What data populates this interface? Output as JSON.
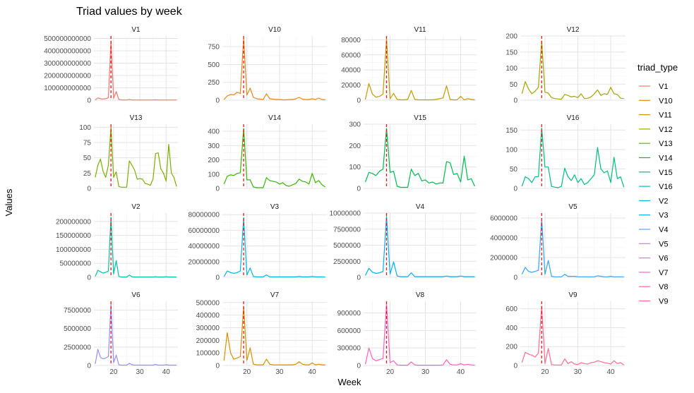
{
  "chart_data": {
    "type": "line",
    "title": "Triad values by week",
    "xlabel": "Week",
    "ylabel": "Values",
    "xlim": [
      12.5,
      44.5
    ],
    "xticks": [
      20,
      30,
      40
    ],
    "vline": {
      "x": 19,
      "color": "#E41A1C",
      "style": "dashed"
    },
    "facet_scales": "free_y",
    "grid": true,
    "legend": {
      "title": "triad_type",
      "position": "right"
    },
    "weeks": [
      13,
      14,
      15,
      16,
      17,
      18,
      19,
      20,
      21,
      22,
      23,
      24,
      25,
      26,
      27,
      28,
      29,
      30,
      31,
      32,
      33,
      34,
      35,
      36,
      37,
      38,
      39,
      40,
      41,
      42,
      43,
      44
    ],
    "panels": [
      {
        "name": "V1",
        "color": "#F8766D",
        "ylim": [
          0,
          520000000000
        ],
        "yticks": [
          0,
          100000000000,
          200000000000,
          300000000000,
          400000000000,
          500000000000
        ],
        "ytick_labels": [
          "0",
          "100000000000",
          "200000000000",
          "300000000000",
          "400000000000",
          "500000000000"
        ],
        "values": [
          3000000000,
          18000000000,
          12000000000,
          10000000000,
          12000000000,
          20000000000,
          480000000000,
          15000000000,
          70000000000,
          5000000000,
          3000000000,
          2000000000,
          2000000000,
          6000000000,
          2000000000,
          2000000000,
          2000000000,
          2000000000,
          2000000000,
          2000000000,
          2000000000,
          2000000000,
          2000000000,
          3000000000,
          2000000000,
          2000000000,
          2000000000,
          2000000000,
          2000000000,
          2000000000,
          2000000000,
          2000000000
        ]
      },
      {
        "name": "V10",
        "color": "#E7861B",
        "ylim": [
          0,
          900
        ],
        "yticks": [
          0,
          250,
          500,
          750
        ],
        "ytick_labels": [
          "0",
          "250",
          "500",
          "750"
        ],
        "values": [
          10,
          60,
          80,
          75,
          110,
          95,
          870,
          70,
          170,
          40,
          20,
          15,
          10,
          90,
          20,
          15,
          10,
          10,
          5,
          5,
          10,
          10,
          20,
          40,
          15,
          10,
          10,
          20,
          10,
          30,
          10,
          5
        ]
      },
      {
        "name": "V11",
        "color": "#C49A00",
        "ylim": [
          0,
          85000
        ],
        "yticks": [
          0,
          20000,
          40000,
          60000,
          80000
        ],
        "ytick_labels": [
          "0",
          "20000",
          "40000",
          "60000",
          "80000"
        ],
        "values": [
          1000,
          22000,
          8000,
          4000,
          5000,
          8000,
          81000,
          2000,
          9000,
          1000,
          500,
          500,
          1000,
          13000,
          1000,
          500,
          500,
          500,
          500,
          500,
          1000,
          2000,
          3000,
          19000,
          1000,
          500,
          500,
          5000,
          500,
          2000,
          1000,
          500
        ]
      },
      {
        "name": "V12",
        "color": "#A3A500",
        "ylim": [
          0,
          200
        ],
        "yticks": [
          0,
          50,
          100,
          150,
          200
        ],
        "ytick_labels": [
          "0",
          "50",
          "100",
          "150",
          "200"
        ],
        "values": [
          20,
          58,
          35,
          20,
          28,
          40,
          185,
          25,
          22,
          8,
          5,
          4,
          3,
          18,
          15,
          10,
          12,
          8,
          20,
          5,
          6,
          10,
          20,
          32,
          15,
          20,
          18,
          40,
          20,
          18,
          6,
          5
        ]
      },
      {
        "name": "V13",
        "color": "#7CAE00",
        "ylim": [
          0,
          105
        ],
        "yticks": [
          0,
          25,
          50,
          75,
          100
        ],
        "ytick_labels": [
          "0",
          "25",
          "50",
          "75",
          "100"
        ],
        "values": [
          18,
          38,
          48,
          28,
          18,
          38,
          100,
          18,
          27,
          3,
          2,
          2,
          2,
          45,
          38,
          30,
          15,
          16,
          15,
          8,
          7,
          5,
          15,
          57,
          58,
          32,
          25,
          12,
          72,
          25,
          18,
          3
        ]
      },
      {
        "name": "V14",
        "color": "#39B600",
        "ylim": [
          0,
          450
        ],
        "yticks": [
          0,
          100,
          200,
          300,
          400
        ],
        "ytick_labels": [
          "0",
          "100",
          "200",
          "300",
          "400"
        ],
        "values": [
          30,
          85,
          95,
          90,
          105,
          110,
          420,
          60,
          60,
          10,
          5,
          5,
          5,
          75,
          55,
          50,
          45,
          30,
          40,
          20,
          15,
          25,
          35,
          65,
          50,
          45,
          30,
          105,
          40,
          55,
          25,
          10
        ]
      },
      {
        "name": "V15",
        "color": "#00BB4E",
        "ylim": [
          0,
          300
        ],
        "yticks": [
          0,
          100,
          200,
          300
        ],
        "ytick_labels": [
          "0",
          "100",
          "200",
          "300"
        ],
        "values": [
          30,
          75,
          70,
          60,
          80,
          90,
          280,
          75,
          80,
          10,
          5,
          5,
          5,
          90,
          60,
          70,
          35,
          40,
          25,
          30,
          20,
          25,
          25,
          125,
          120,
          65,
          70,
          30,
          150,
          40,
          45,
          10
        ]
      },
      {
        "name": "V16",
        "color": "#00BF7D",
        "ylim": [
          0,
          165
        ],
        "yticks": [
          0,
          50,
          100,
          150
        ],
        "ytick_labels": [
          "0",
          "50",
          "100",
          "150"
        ],
        "values": [
          5,
          30,
          25,
          15,
          30,
          30,
          155,
          55,
          55,
          5,
          3,
          2,
          5,
          52,
          30,
          20,
          35,
          15,
          25,
          10,
          15,
          25,
          35,
          105,
          50,
          40,
          45,
          15,
          80,
          25,
          30,
          3
        ]
      },
      {
        "name": "V2",
        "color": "#00C1A3",
        "ylim": [
          0,
          230000000
        ],
        "yticks": [
          0,
          50000000,
          100000000,
          150000000,
          200000000
        ],
        "ytick_labels": [
          "0",
          "50000000",
          "100000000",
          "150000000",
          "200000000"
        ],
        "values": [
          3000000,
          25000000,
          20000000,
          15000000,
          18000000,
          22000000,
          215000000,
          12000000,
          60000000,
          3000000,
          1000000,
          1000000,
          1000000,
          8000000,
          2000000,
          1000000,
          1000000,
          1000000,
          1000000,
          1000000,
          1000000,
          1000000,
          1000000,
          2000000,
          1000000,
          1000000,
          1000000,
          2000000,
          1000000,
          1000000,
          1000000,
          1000000
        ]
      },
      {
        "name": "V3",
        "color": "#00BAE0",
        "ylim": [
          0,
          82000000
        ],
        "yticks": [
          0,
          20000000,
          40000000,
          60000000,
          80000000
        ],
        "ytick_labels": [
          "0",
          "20000000",
          "40000000",
          "60000000",
          "80000000"
        ],
        "values": [
          1000000,
          8000000,
          6000000,
          5000000,
          6000000,
          8000000,
          76000000,
          3000000,
          12000000,
          1000000,
          500000,
          500000,
          500000,
          3000000,
          500000,
          500000,
          500000,
          500000,
          500000,
          500000,
          500000,
          500000,
          500000,
          1000000,
          500000,
          500000,
          500000,
          1000000,
          500000,
          500000,
          500000,
          300000
        ]
      },
      {
        "name": "V4",
        "color": "#00B0F6",
        "ylim": [
          0,
          10000000
        ],
        "yticks": [
          0,
          2500000,
          5000000,
          7500000,
          10000000
        ],
        "ytick_labels": [
          "0",
          "2500000",
          "5000000",
          "7500000",
          "10000000"
        ],
        "values": [
          300000,
          1400000,
          800000,
          600000,
          700000,
          900000,
          9500000,
          500000,
          2400000,
          200000,
          100000,
          100000,
          100000,
          700000,
          100000,
          100000,
          100000,
          100000,
          100000,
          100000,
          100000,
          100000,
          100000,
          200000,
          100000,
          100000,
          100000,
          200000,
          100000,
          100000,
          100000,
          100000
        ]
      },
      {
        "name": "V5",
        "color": "#35A2FF",
        "ylim": [
          0,
          6500000
        ],
        "yticks": [
          0,
          2000000,
          4000000,
          6000000
        ],
        "ytick_labels": [
          "0",
          "2000000",
          "4000000",
          "6000000"
        ],
        "values": [
          300000,
          1000000,
          600000,
          500000,
          600000,
          700000,
          5900000,
          300000,
          1700000,
          100000,
          50000,
          50000,
          50000,
          300000,
          100000,
          100000,
          100000,
          50000,
          50000,
          50000,
          50000,
          50000,
          50000,
          150000,
          100000,
          50000,
          50000,
          100000,
          50000,
          50000,
          50000,
          50000
        ]
      },
      {
        "name": "V6",
        "color": "#9590FF",
        "ylim": [
          0,
          8700000
        ],
        "yticks": [
          0,
          2500000,
          5000000,
          7500000
        ],
        "ytick_labels": [
          "0",
          "2500000",
          "5000000",
          "7500000"
        ],
        "values": [
          200000,
          2200000,
          1100000,
          900000,
          1000000,
          1200000,
          8300000,
          400000,
          1400000,
          100000,
          50000,
          50000,
          50000,
          300000,
          100000,
          50000,
          50000,
          50000,
          50000,
          50000,
          50000,
          50000,
          50000,
          150000,
          50000,
          50000,
          50000,
          100000,
          50000,
          50000,
          50000,
          50000
        ]
      },
      {
        "name": "V7",
        "color": "#D89000",
        "ylim": [
          0,
          510000
        ],
        "yticks": [
          0,
          100000,
          200000,
          300000,
          400000,
          500000
        ],
        "ytick_labels": [
          "0",
          "100000",
          "200000",
          "300000",
          "400000",
          "500000"
        ],
        "values": [
          40000,
          260000,
          100000,
          50000,
          60000,
          70000,
          470000,
          40000,
          140000,
          10000,
          5000,
          5000,
          5000,
          50000,
          10000,
          5000,
          5000,
          5000,
          5000,
          5000,
          5000,
          5000,
          10000,
          30000,
          10000,
          5000,
          5000,
          20000,
          5000,
          10000,
          5000,
          5000
        ]
      },
      {
        "name": "V8",
        "color": "#FF62BC",
        "ylim": [
          0,
          1100000
        ],
        "yticks": [
          0,
          300000,
          600000,
          900000
        ],
        "ytick_labels": [
          "0",
          "300000",
          "600000",
          "900000"
        ],
        "values": [
          20000,
          300000,
          120000,
          80000,
          100000,
          120000,
          1050000,
          50000,
          80000,
          10000,
          5000,
          5000,
          5000,
          60000,
          10000,
          5000,
          5000,
          5000,
          5000,
          5000,
          5000,
          5000,
          10000,
          100000,
          20000,
          10000,
          10000,
          30000,
          10000,
          20000,
          10000,
          5000
        ]
      },
      {
        "name": "V9",
        "color": "#FF6C91",
        "ylim": [
          0,
          680
        ],
        "yticks": [
          0,
          200,
          400,
          600
        ],
        "ytick_labels": [
          "0",
          "200",
          "400",
          "600"
        ],
        "values": [
          30,
          140,
          120,
          110,
          90,
          130,
          630,
          20,
          180,
          10,
          5,
          5,
          5,
          70,
          20,
          40,
          15,
          10,
          30,
          20,
          15,
          30,
          35,
          50,
          40,
          30,
          25,
          15,
          50,
          20,
          30,
          5
        ]
      }
    ]
  },
  "legend_items": [
    {
      "label": "V1",
      "color": "#F8766D"
    },
    {
      "label": "V10",
      "color": "#E58700"
    },
    {
      "label": "V11",
      "color": "#C99800"
    },
    {
      "label": "V12",
      "color": "#A3A500"
    },
    {
      "label": "V13",
      "color": "#6BB100"
    },
    {
      "label": "V14",
      "color": "#00BA38"
    },
    {
      "label": "V15",
      "color": "#00BF7D"
    },
    {
      "label": "V16",
      "color": "#00C0AF"
    },
    {
      "label": "V2",
      "color": "#00BCD8"
    },
    {
      "label": "V3",
      "color": "#00B0F6"
    },
    {
      "label": "V4",
      "color": "#619CFF"
    },
    {
      "label": "V5",
      "color": "#B983FF"
    },
    {
      "label": "V6",
      "color": "#E76BF3"
    },
    {
      "label": "V7",
      "color": "#FD61D1"
    },
    {
      "label": "V8",
      "color": "#FF67A4"
    },
    {
      "label": "V9",
      "color": "#FF6C91"
    }
  ]
}
